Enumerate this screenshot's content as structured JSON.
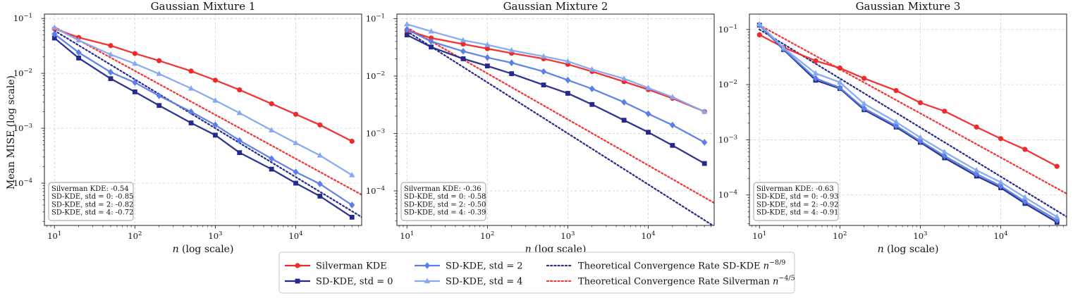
{
  "figure": {
    "ylabel": "Mean MISE (log scale)",
    "xlabel": "n (log scale)",
    "x": [
      10,
      20,
      50,
      100,
      200,
      500,
      1000,
      2000,
      5000,
      10000,
      20000,
      50000
    ]
  },
  "colors": {
    "silverman": "#f02a2a",
    "sd0": "#232a8c",
    "sd2": "#5a7fe6",
    "sd4": "#86a8f0",
    "theory_sd": "#2d2f8f",
    "theory_silverman": "#f03a3a"
  },
  "legend": [
    {
      "key": "silverman",
      "label": "Silverman KDE",
      "marker": "circle",
      "style": "solid"
    },
    {
      "key": "sd0",
      "label": "SD-KDE, std = 0",
      "marker": "square",
      "style": "solid"
    },
    {
      "key": "sd2",
      "label": "SD-KDE, std = 2",
      "marker": "diamond",
      "style": "solid"
    },
    {
      "key": "sd4",
      "label": "SD-KDE, std = 4",
      "marker": "triangle",
      "style": "solid"
    },
    {
      "key": "theory_sd",
      "label": "Theoretical Convergence Rate SD-KDE",
      "exp": "−8/9",
      "style": "dotted"
    },
    {
      "key": "theory_silverman",
      "label": "Theoretical Convergence Rate Silverman",
      "exp": "−4/5",
      "style": "dotted"
    }
  ],
  "chart_data": [
    {
      "type": "line",
      "title": "Gaussian Mixture 1",
      "ylim": [
        1.7e-05,
        0.12
      ],
      "stats": [
        "Silverman KDE: -0.54",
        "SD-KDE, std = 0: -0.85",
        "SD-KDE, std = 2: -0.82",
        "SD-KDE, std = 4: -0.72"
      ],
      "series": [
        {
          "key": "silverman",
          "name": "Silverman KDE",
          "values": [
            0.065,
            0.045,
            0.032,
            0.023,
            0.017,
            0.011,
            0.0075,
            0.005,
            0.0028,
            0.0018,
            0.00115,
            0.00058
          ]
        },
        {
          "key": "sd0",
          "name": "SD-KDE, std = 0",
          "values": [
            0.044,
            0.019,
            0.008,
            0.0046,
            0.0026,
            0.00125,
            0.00075,
            0.00036,
            0.00018,
            0.0001,
            5.8e-05,
            2.4e-05
          ]
        },
        {
          "key": "sd2",
          "name": "SD-KDE, std = 2",
          "values": [
            0.052,
            0.024,
            0.0105,
            0.0068,
            0.0039,
            0.002,
            0.00115,
            0.0006,
            0.00028,
            0.00016,
            9.7e-05,
            4e-05
          ]
        },
        {
          "key": "sd4",
          "name": "SD-KDE, std = 4",
          "values": [
            0.068,
            0.04,
            0.022,
            0.015,
            0.0098,
            0.0053,
            0.0032,
            0.0019,
            0.00092,
            0.00054,
            0.00032,
            0.00014
          ]
        },
        {
          "key": "theory_sd",
          "name": "Theoretical Convergence Rate SD-KDE",
          "start": 0.06,
          "slope": -0.8889
        },
        {
          "key": "theory_silverman",
          "name": "Theoretical Convergence Rate Silverman",
          "start": 0.07,
          "slope": -0.8
        }
      ]
    },
    {
      "type": "line",
      "title": "Gaussian Mixture 2",
      "ylim": [
        2.5e-05,
        0.12
      ],
      "stats": [
        "Silverman KDE: -0.36",
        "SD-KDE, std = 0: -0.58",
        "SD-KDE, std = 2: -0.50",
        "SD-KDE, std = 4: -0.39"
      ],
      "series": [
        {
          "key": "silverman",
          "name": "Silverman KDE",
          "values": [
            0.062,
            0.046,
            0.036,
            0.03,
            0.025,
            0.02,
            0.016,
            0.012,
            0.008,
            0.0058,
            0.0041,
            0.0024
          ]
        },
        {
          "key": "sd0",
          "name": "SD-KDE, std = 0",
          "values": [
            0.052,
            0.032,
            0.02,
            0.015,
            0.011,
            0.007,
            0.005,
            0.0032,
            0.0017,
            0.00105,
            0.00062,
            0.0003
          ]
        },
        {
          "key": "sd2",
          "name": "SD-KDE, std = 2",
          "values": [
            0.065,
            0.04,
            0.027,
            0.021,
            0.017,
            0.012,
            0.0085,
            0.006,
            0.0035,
            0.0022,
            0.0014,
            0.0007
          ]
        },
        {
          "key": "sd4",
          "name": "SD-KDE, std = 4",
          "values": [
            0.08,
            0.06,
            0.042,
            0.035,
            0.028,
            0.022,
            0.018,
            0.013,
            0.009,
            0.0062,
            0.0043,
            0.0024
          ]
        },
        {
          "key": "theory_sd",
          "name": "Theoretical Convergence Rate SD-KDE",
          "start": 0.06,
          "slope": -0.8889
        },
        {
          "key": "theory_silverman",
          "name": "Theoretical Convergence Rate Silverman",
          "start": 0.07,
          "slope": -0.8
        }
      ]
    },
    {
      "type": "line",
      "title": "Gaussian Mixture 3",
      "ylim": [
        2.8e-05,
        0.19
      ],
      "stats": [
        "Silverman KDE: -0.63",
        "SD-KDE, std = 0: -0.93",
        "SD-KDE, std = 2: -0.92",
        "SD-KDE, std = 4: -0.91"
      ],
      "series": [
        {
          "key": "silverman",
          "name": "Silverman KDE",
          "values": [
            0.08,
            0.047,
            0.027,
            0.02,
            0.013,
            0.0078,
            0.0047,
            0.0033,
            0.0017,
            0.00105,
            0.00067,
            0.00033
          ]
        },
        {
          "key": "sd0",
          "name": "SD-KDE, std = 0",
          "values": [
            0.12,
            0.043,
            0.012,
            0.0085,
            0.0035,
            0.0017,
            0.0009,
            0.00047,
            0.00022,
            0.000135,
            7e-05,
            3.2e-05
          ]
        },
        {
          "key": "sd2",
          "name": "SD-KDE, std = 2",
          "values": [
            0.12,
            0.044,
            0.013,
            0.0088,
            0.0037,
            0.0018,
            0.00095,
            0.00051,
            0.00024,
            0.000145,
            7.6e-05,
            3.5e-05
          ]
        },
        {
          "key": "sd4",
          "name": "SD-KDE, std = 4",
          "values": [
            0.125,
            0.046,
            0.016,
            0.011,
            0.0045,
            0.0021,
            0.0011,
            0.0006,
            0.00028,
            0.00017,
            9e-05,
            4e-05
          ]
        },
        {
          "key": "theory_sd",
          "name": "Theoretical Convergence Rate SD-KDE",
          "start": 0.1,
          "slope": -0.8889
        },
        {
          "key": "theory_silverman",
          "name": "Theoretical Convergence Rate Silverman",
          "start": 0.12,
          "slope": -0.8
        }
      ]
    }
  ]
}
